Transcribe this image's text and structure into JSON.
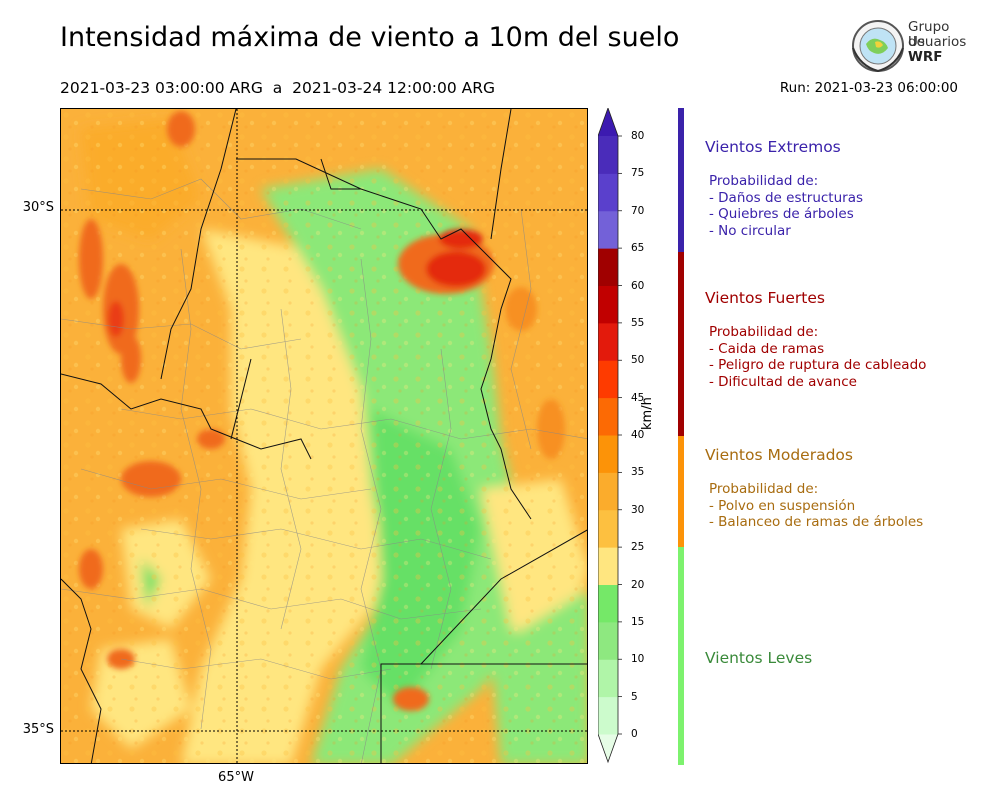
{
  "title": "Intensidad máxima de viento a 10m del suelo",
  "period": "2021-03-23 03:00:00 ARG  a  2021-03-24 12:00:00 ARG",
  "run": "Run: 2021-03-23 06:00:00",
  "logo": {
    "line1": "Grupo de",
    "line2": "Usuarios",
    "line3": "WRF"
  },
  "map": {
    "lat_labels": [
      "30°S",
      "35°S"
    ],
    "lon_labels": [
      "65°W"
    ],
    "fill_colors": [
      "#ffe680",
      "#fdc040",
      "#fbac2c",
      "#f79020",
      "#f06a1e",
      "#8ce878",
      "#66e066"
    ]
  },
  "colorbar": {
    "units": "km/h",
    "ticks": [
      "0",
      "5",
      "10",
      "15",
      "20",
      "25",
      "30",
      "35",
      "40",
      "45",
      "50",
      "55",
      "60",
      "65",
      "70",
      "75",
      "80"
    ],
    "colors": [
      "#e6fde6",
      "#ccfbcc",
      "#b0f5a8",
      "#8ee880",
      "#75e868",
      "#ffe680",
      "#fdc040",
      "#fbac2c",
      "#fc9308",
      "#fc6a04",
      "#fe3b00",
      "#e31a0c",
      "#c10000",
      "#a00000",
      "#7361d8",
      "#5a40cc",
      "#4a2cba",
      "#3c1ab0"
    ]
  },
  "categories": [
    {
      "name": "Vientos Extremos",
      "color": "#3a22aa",
      "prob": "Probabilidad de:",
      "items": [
        "- Daños de estructuras",
        "- Quiebres de árboles",
        "- No circular"
      ]
    },
    {
      "name": "Vientos Fuertes",
      "color": "#a00000",
      "prob": "Probabilidad de:",
      "items": [
        "- Caida de ramas",
        "- Peligro de ruptura de cableado",
        "- Dificultad de avance"
      ]
    },
    {
      "name": "Vientos Moderados",
      "color": "#a86c10",
      "prob": "Probabilidad de:",
      "items": [
        "- Polvo en suspensión",
        "- Balanceo de ramas de árboles"
      ]
    },
    {
      "name": "Vientos Leves",
      "color": "#3a8a3a",
      "prob": "",
      "items": []
    }
  ],
  "side_bar_colors": [
    "#3a22aa",
    "#a00000",
    "#fc9308",
    "#7df26e"
  ]
}
